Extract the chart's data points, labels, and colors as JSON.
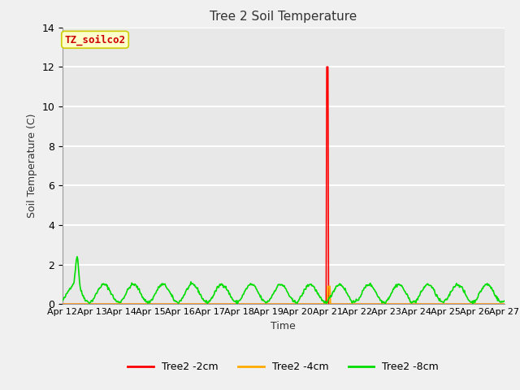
{
  "title": "Tree 2 Soil Temperature",
  "ylabel": "Soil Temperature (C)",
  "xlabel": "Time",
  "annotation_text": "TZ_soilco2",
  "annotation_bg": "#ffffcc",
  "annotation_border": "#cccc00",
  "annotation_color": "#cc0000",
  "ylim": [
    0,
    14
  ],
  "yticks": [
    0,
    2,
    4,
    6,
    8,
    10,
    12,
    14
  ],
  "plot_bg": "#e8e8e8",
  "fig_bg": "#f0f0f0",
  "grid_color": "#ffffff",
  "series": {
    "tree2_2cm": {
      "label": "Tree2 -2cm",
      "color": "#ff0000"
    },
    "tree2_4cm": {
      "label": "Tree2 -4cm",
      "color": "#ffaa00"
    },
    "tree2_8cm": {
      "label": "Tree2 -8cm",
      "color": "#00dd00"
    }
  },
  "xtick_labels": [
    "Apr 12",
    "Apr 13",
    "Apr 14",
    "Apr 15",
    "Apr 16",
    "Apr 17",
    "Apr 18",
    "Apr 19",
    "Apr 20",
    "Apr 21",
    "Apr 22",
    "Apr 23",
    "Apr 24",
    "Apr 25",
    "Apr 26",
    "Apr 27"
  ]
}
